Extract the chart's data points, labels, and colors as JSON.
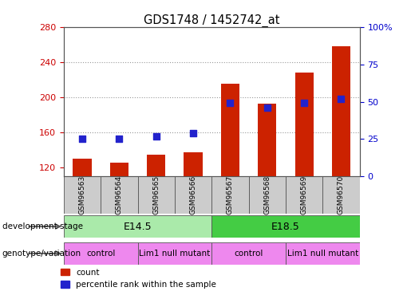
{
  "title": "GDS1748 / 1452742_at",
  "samples": [
    "GSM96563",
    "GSM96564",
    "GSM96565",
    "GSM96566",
    "GSM96567",
    "GSM96568",
    "GSM96569",
    "GSM96570"
  ],
  "counts": [
    130,
    126,
    135,
    137,
    215,
    193,
    228,
    258
  ],
  "percentiles": [
    25,
    25,
    27,
    29,
    49,
    46,
    49,
    52
  ],
  "ylim_left": [
    110,
    280
  ],
  "ylim_right": [
    0,
    100
  ],
  "yticks_left": [
    120,
    160,
    200,
    240,
    280
  ],
  "yticks_right": [
    0,
    25,
    50,
    75,
    100
  ],
  "bar_color": "#cc2200",
  "dot_color": "#2222cc",
  "grid_color": "#888888",
  "dev_stage_colors": [
    "#aaeaaa",
    "#44cc44"
  ],
  "genotype_color": "#ee88ee",
  "sample_box_color": "#cccccc",
  "dev_stages": [
    {
      "label": "E14.5",
      "start": 0,
      "end": 3
    },
    {
      "label": "E18.5",
      "start": 4,
      "end": 7
    }
  ],
  "genotypes": [
    {
      "label": "control",
      "start": 0,
      "end": 1
    },
    {
      "label": "Lim1 null mutant",
      "start": 2,
      "end": 3
    },
    {
      "label": "control",
      "start": 4,
      "end": 5
    },
    {
      "label": "Lim1 null mutant",
      "start": 6,
      "end": 7
    }
  ],
  "bar_width": 0.5,
  "dot_size": 40,
  "left_axis_color": "#cc0000",
  "right_axis_color": "#0000cc"
}
